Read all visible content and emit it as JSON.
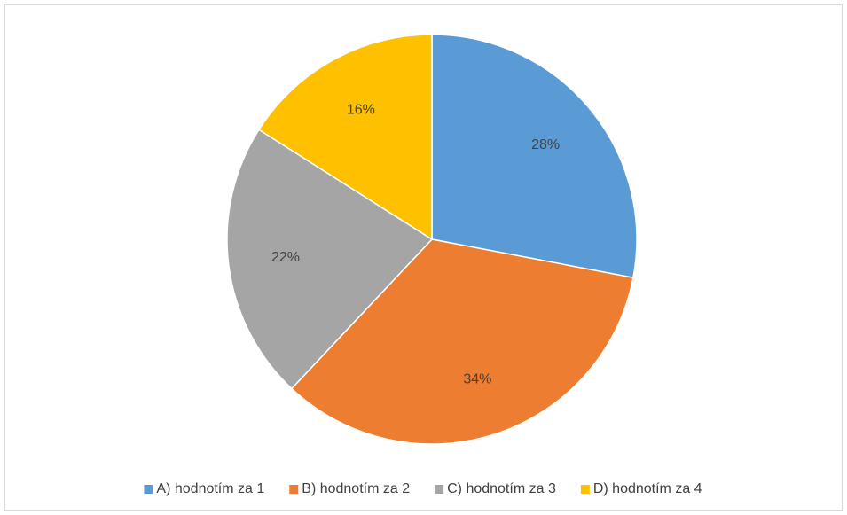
{
  "chart_data": {
    "type": "pie",
    "categories": [
      "A) hodnotím za 1",
      "B) hodnotím za 2",
      "C) hodnotím za 3",
      "D) hodnotím za 4"
    ],
    "values": [
      28,
      34,
      22,
      16
    ],
    "value_labels": [
      "28%",
      "34%",
      "22%",
      "16%"
    ],
    "colors": [
      "#5b9bd5",
      "#ed7d31",
      "#a5a5a5",
      "#ffc000"
    ],
    "legend": "bottom"
  }
}
